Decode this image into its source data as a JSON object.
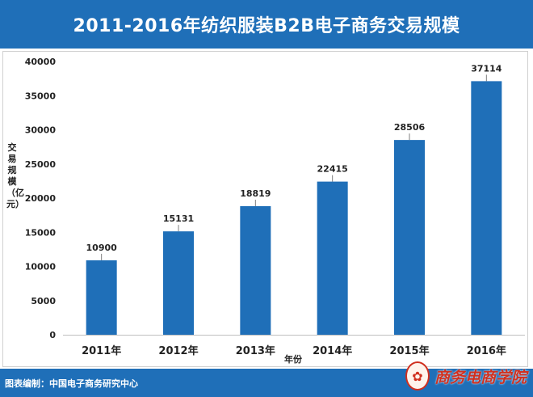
{
  "header": {
    "title": "2011-2016年纺织服装B2B电子商务交易规模"
  },
  "footer": {
    "source": "图表编制：中国电子商务研究中心"
  },
  "logo": {
    "text": "商务电商学院",
    "icon": "seal-icon",
    "color": "#d0301f"
  },
  "colors": {
    "accent": "#1f6fb8",
    "bar": "#1f6fb8"
  },
  "chart_data": {
    "type": "bar",
    "title": "2011-2016年纺织服装B2B电子商务交易规模",
    "xlabel": "年份",
    "ylabel": "交易规模（亿元）",
    "categories": [
      "2011年",
      "2012年",
      "2013年",
      "2014年",
      "2015年",
      "2016年"
    ],
    "values": [
      10900,
      15131,
      18819,
      22415,
      28506,
      37114
    ],
    "ylim": [
      0,
      40000
    ],
    "yticks": [
      0,
      5000,
      10000,
      15000,
      20000,
      25000,
      30000,
      35000,
      40000
    ],
    "grid": false,
    "legend": "none"
  }
}
